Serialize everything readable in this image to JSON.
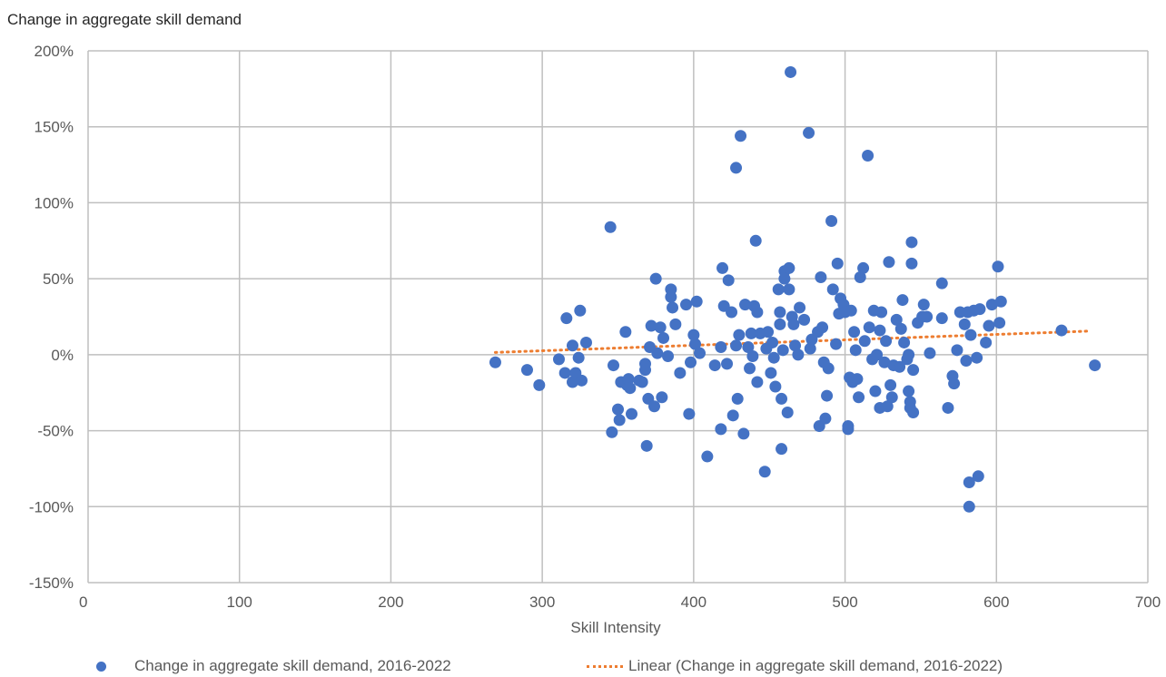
{
  "chart_data": {
    "type": "scatter",
    "title": "Change in aggregate skill demand",
    "xlabel": "Skill Intensity",
    "ylabel": "",
    "xlim": [
      0,
      700
    ],
    "ylim": [
      -150,
      200
    ],
    "x_ticks": [
      0,
      100,
      200,
      300,
      400,
      500,
      600,
      700
    ],
    "y_ticks": [
      -150,
      -100,
      -50,
      0,
      50,
      100,
      150,
      200
    ],
    "y_tick_labels": [
      "-150%",
      "-100%",
      "-50%",
      "0%",
      "50%",
      "100%",
      "150%",
      "200%"
    ],
    "grid": true,
    "legend_position": "bottom",
    "colors": {
      "points": "#4472C4",
      "trend": "#ED7D31",
      "grid": "#BFBFBF"
    },
    "series": [
      {
        "name": "Change in aggregate skill demand, 2016-2022",
        "points": [
          [
            269,
            -5
          ],
          [
            290,
            -10
          ],
          [
            298,
            -20
          ],
          [
            311,
            -3
          ],
          [
            315,
            -12
          ],
          [
            316,
            24
          ],
          [
            320,
            6
          ],
          [
            320,
            -18
          ],
          [
            322,
            -12
          ],
          [
            324,
            -2
          ],
          [
            325,
            29
          ],
          [
            326,
            -17
          ],
          [
            329,
            8
          ],
          [
            345,
            84
          ],
          [
            346,
            -51
          ],
          [
            347,
            -7
          ],
          [
            350,
            -36
          ],
          [
            351,
            -43
          ],
          [
            352,
            -18
          ],
          [
            355,
            15
          ],
          [
            356,
            -20
          ],
          [
            357,
            -16
          ],
          [
            358,
            -22
          ],
          [
            359,
            -39
          ],
          [
            364,
            -17
          ],
          [
            366,
            -18
          ],
          [
            368,
            -6
          ],
          [
            368,
            -10
          ],
          [
            369,
            -60
          ],
          [
            370,
            -29
          ],
          [
            371,
            5
          ],
          [
            372,
            19
          ],
          [
            374,
            -34
          ],
          [
            375,
            50
          ],
          [
            376,
            1
          ],
          [
            378,
            18
          ],
          [
            379,
            -28
          ],
          [
            380,
            11
          ],
          [
            383,
            -1
          ],
          [
            385,
            43
          ],
          [
            385,
            38
          ],
          [
            386,
            31
          ],
          [
            388,
            20
          ],
          [
            391,
            -12
          ],
          [
            395,
            33
          ],
          [
            397,
            -39
          ],
          [
            398,
            -5
          ],
          [
            400,
            13
          ],
          [
            401,
            7
          ],
          [
            402,
            35
          ],
          [
            404,
            1
          ],
          [
            409,
            -67
          ],
          [
            414,
            -7
          ],
          [
            418,
            -49
          ],
          [
            418,
            5
          ],
          [
            419,
            57
          ],
          [
            420,
            32
          ],
          [
            422,
            -6
          ],
          [
            423,
            49
          ],
          [
            425,
            28
          ],
          [
            426,
            -40
          ],
          [
            428,
            123
          ],
          [
            428,
            6
          ],
          [
            429,
            -29
          ],
          [
            430,
            13
          ],
          [
            431,
            144
          ],
          [
            433,
            -52
          ],
          [
            434,
            33
          ],
          [
            436,
            5
          ],
          [
            437,
            -9
          ],
          [
            438,
            14
          ],
          [
            439,
            -1
          ],
          [
            440,
            32
          ],
          [
            441,
            75
          ],
          [
            442,
            -18
          ],
          [
            442,
            28
          ],
          [
            444,
            14
          ],
          [
            447,
            -77
          ],
          [
            448,
            4
          ],
          [
            449,
            15
          ],
          [
            451,
            -12
          ],
          [
            452,
            8
          ],
          [
            453,
            -2
          ],
          [
            454,
            -21
          ],
          [
            456,
            43
          ],
          [
            457,
            28
          ],
          [
            457,
            20
          ],
          [
            458,
            -29
          ],
          [
            458,
            -62
          ],
          [
            459,
            3
          ],
          [
            460,
            55
          ],
          [
            460,
            50
          ],
          [
            462,
            -38
          ],
          [
            463,
            57
          ],
          [
            463,
            43
          ],
          [
            464,
            186
          ],
          [
            465,
            25
          ],
          [
            466,
            20
          ],
          [
            467,
            6
          ],
          [
            469,
            0
          ],
          [
            470,
            31
          ],
          [
            473,
            23
          ],
          [
            476,
            146
          ],
          [
            477,
            4
          ],
          [
            478,
            10
          ],
          [
            482,
            15
          ],
          [
            483,
            -47
          ],
          [
            484,
            51
          ],
          [
            485,
            18
          ],
          [
            486,
            -5
          ],
          [
            487,
            -42
          ],
          [
            488,
            -27
          ],
          [
            489,
            -9
          ],
          [
            491,
            88
          ],
          [
            492,
            43
          ],
          [
            494,
            7
          ],
          [
            495,
            60
          ],
          [
            496,
            27
          ],
          [
            497,
            37
          ],
          [
            499,
            33
          ],
          [
            500,
            28
          ],
          [
            502,
            -49
          ],
          [
            502,
            -47
          ],
          [
            503,
            -15
          ],
          [
            504,
            29
          ],
          [
            505,
            -18
          ],
          [
            506,
            15
          ],
          [
            507,
            3
          ],
          [
            508,
            -16
          ],
          [
            509,
            -28
          ],
          [
            510,
            51
          ],
          [
            512,
            57
          ],
          [
            513,
            9
          ],
          [
            515,
            131
          ],
          [
            516,
            18
          ],
          [
            518,
            -3
          ],
          [
            519,
            29
          ],
          [
            520,
            -24
          ],
          [
            521,
            0
          ],
          [
            523,
            -35
          ],
          [
            523,
            16
          ],
          [
            524,
            28
          ],
          [
            526,
            -5
          ],
          [
            527,
            9
          ],
          [
            528,
            -34
          ],
          [
            529,
            61
          ],
          [
            530,
            -20
          ],
          [
            531,
            -28
          ],
          [
            532,
            -7
          ],
          [
            534,
            23
          ],
          [
            536,
            -8
          ],
          [
            537,
            17
          ],
          [
            538,
            36
          ],
          [
            539,
            8
          ],
          [
            541,
            -3
          ],
          [
            542,
            -24
          ],
          [
            542,
            0
          ],
          [
            543,
            -31
          ],
          [
            543,
            -35
          ],
          [
            544,
            74
          ],
          [
            544,
            60
          ],
          [
            545,
            -10
          ],
          [
            545,
            -38
          ],
          [
            548,
            21
          ],
          [
            551,
            25
          ],
          [
            552,
            33
          ],
          [
            554,
            25
          ],
          [
            556,
            1
          ],
          [
            564,
            47
          ],
          [
            564,
            24
          ],
          [
            568,
            -35
          ],
          [
            571,
            -14
          ],
          [
            572,
            -19
          ],
          [
            574,
            3
          ],
          [
            576,
            28
          ],
          [
            579,
            20
          ],
          [
            580,
            -4
          ],
          [
            581,
            28
          ],
          [
            582,
            -100
          ],
          [
            582,
            -84
          ],
          [
            583,
            13
          ],
          [
            585,
            29
          ],
          [
            587,
            -2
          ],
          [
            588,
            -80
          ],
          [
            589,
            30
          ],
          [
            593,
            8
          ],
          [
            595,
            19
          ],
          [
            597,
            33
          ],
          [
            601,
            58
          ],
          [
            602,
            21
          ],
          [
            603,
            35
          ],
          [
            643,
            16
          ],
          [
            665,
            -7
          ]
        ]
      },
      {
        "name": "Linear (Change in aggregate skill demand, 2016-2022)",
        "type": "linear-trend",
        "x": [
          269,
          660
        ],
        "y": [
          1.5,
          15.5
        ]
      }
    ]
  }
}
